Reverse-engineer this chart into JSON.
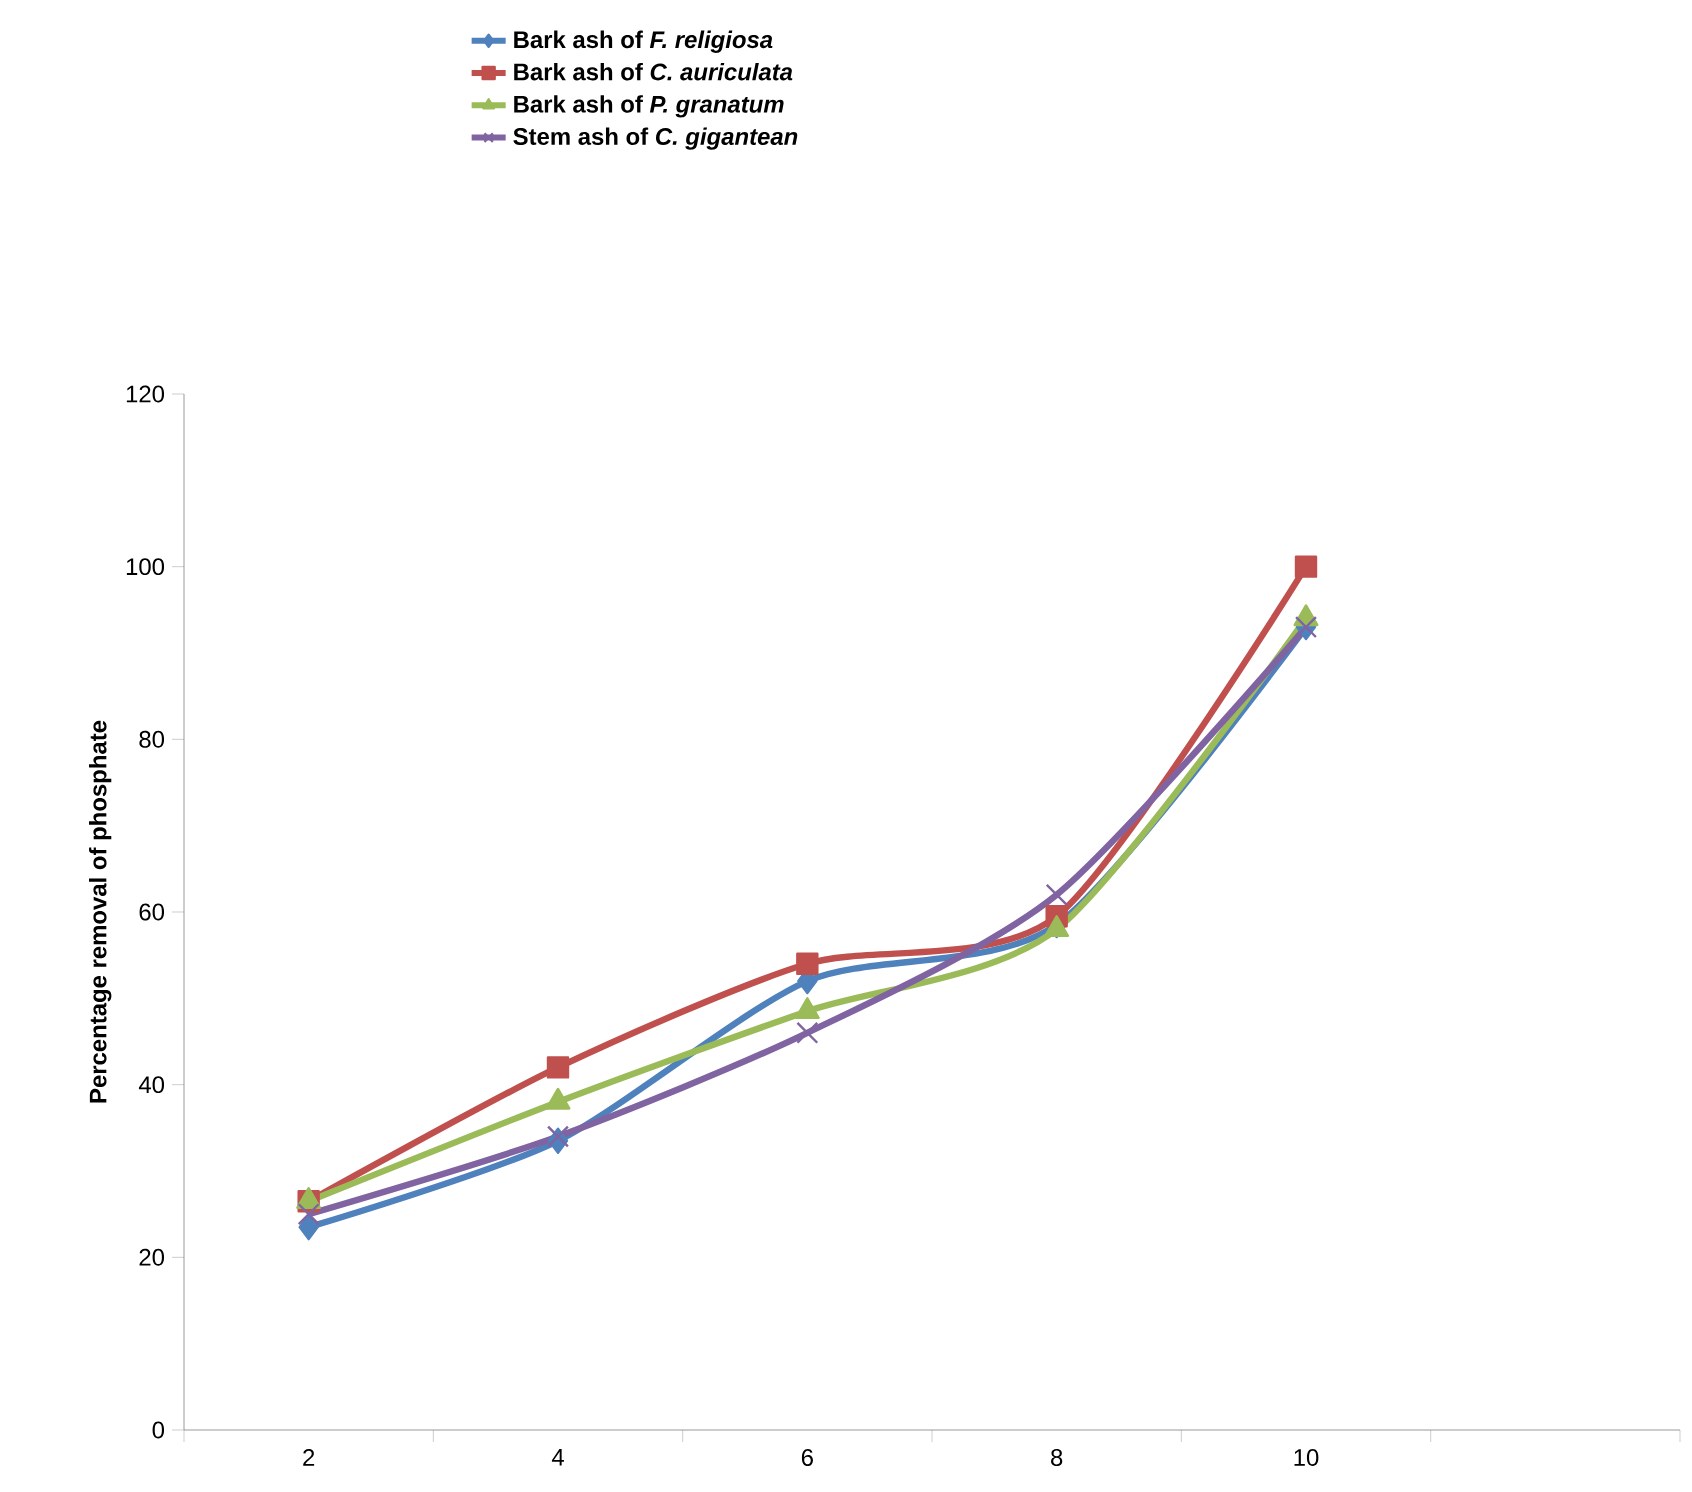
{
  "chart_data": {
    "type": "line",
    "ylabel": "Percentage removal of phosphate",
    "categories": [
      "2",
      "4",
      "6",
      "8",
      "10",
      null
    ],
    "series": [
      {
        "name": "Bark ash of *F. religiosa*",
        "color": "#4f81bd",
        "marker": "diamond",
        "values": [
          23.5,
          33.5,
          52,
          58.5,
          93,
          null
        ]
      },
      {
        "name": "Bark ash of *C. auriculata*",
        "color": "#c0504d",
        "marker": "square",
        "values": [
          26.5,
          42,
          54,
          59.5,
          100,
          null
        ]
      },
      {
        "name": "Bark ash of *P. granatum*",
        "color": "#9bbb59",
        "marker": "triangle",
        "values": [
          26.5,
          38,
          48.5,
          58,
          94,
          null
        ]
      },
      {
        "name": "Stem ash of *C. gigantean*",
        "color": "#8064a2",
        "marker": "cross",
        "values": [
          25,
          34,
          46,
          62,
          93,
          null
        ]
      }
    ],
    "ylim": [
      0,
      120
    ],
    "yticks": [
      0,
      20,
      40,
      60,
      80,
      100,
      120
    ],
    "grid": false,
    "legend": "top",
    "line_style": "solid"
  }
}
